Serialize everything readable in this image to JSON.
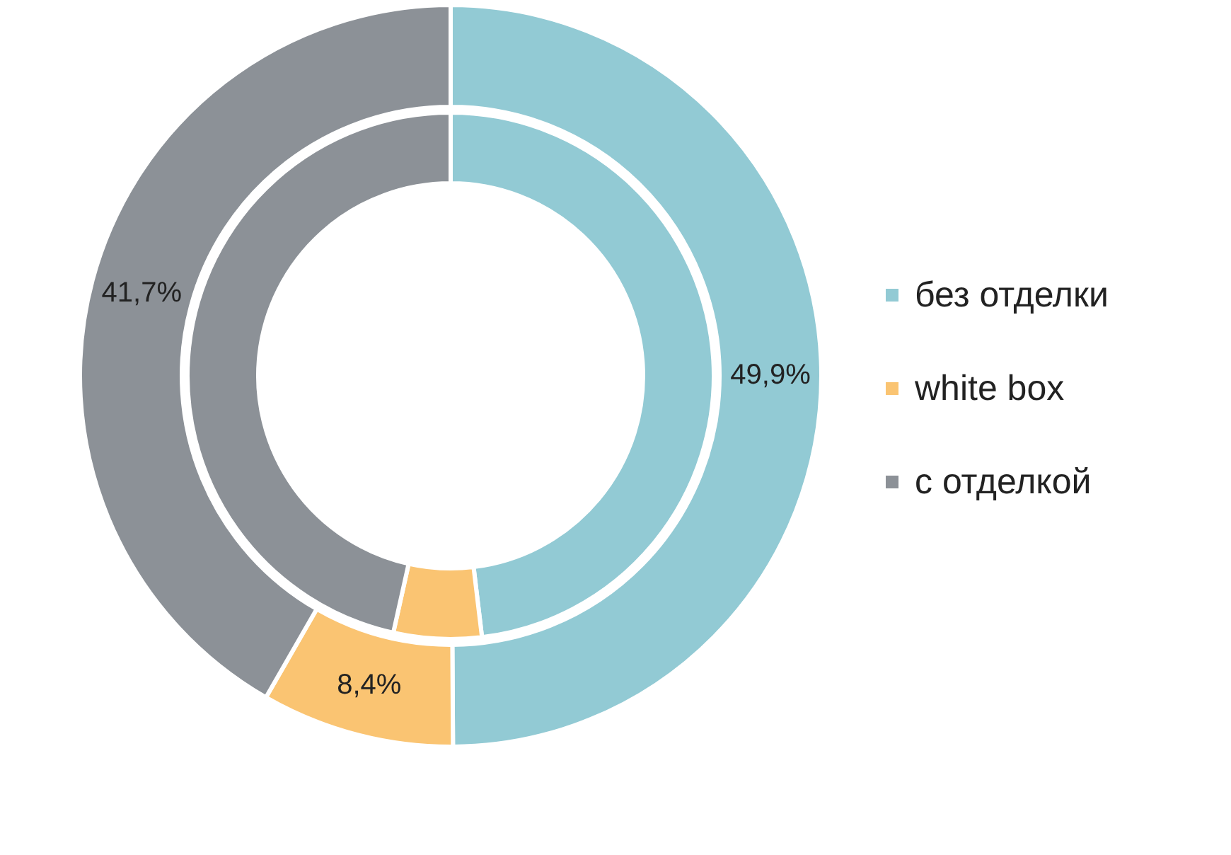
{
  "chart_data": {
    "type": "donut",
    "categories": [
      "без отделки",
      "white box",
      "с отделкой"
    ],
    "colors": [
      "#92cad4",
      "#fac472",
      "#8c9197"
    ],
    "series": [
      {
        "values": [
          49.9,
          8.4,
          41.7
        ],
        "value_labels": [
          "49,9%",
          "8,4%",
          "41,7%"
        ]
      },
      {
        "values": [
          48.1,
          5.4,
          46.5
        ]
      }
    ],
    "legend": "right"
  }
}
